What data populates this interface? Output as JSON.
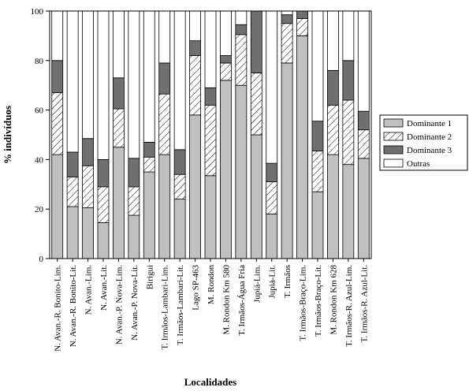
{
  "chart_data": {
    "type": "stacked_bar",
    "y_label": "% indivíduos",
    "x_label": "Localidades",
    "categories": [
      "N. Avan.-R. Bonito-Lim.",
      "N. Avan.-R. Bonito-Lit.",
      "N. Avan.-Lim.",
      "N. Avan.-Lit.",
      "N. Avan.-P. Nova-Lim.",
      "N. Avan.-P. Nova-Lit.",
      "Birigui",
      "T. Irmãos-Lambari-Lim.",
      "T. Irmãos-Lambari-Lit.",
      "Lago SP-463",
      "M. Rondon",
      "M. Rondon Km 580",
      "T. Irmãos-Água Fria",
      "Jupiá-Lim.",
      "Jupiá-Lit.",
      "T. Irmãos",
      "T. Irmãos-Braço-Lim.",
      "T. Irmãos-Braço-Lit.",
      "M. Rondon Km 628",
      "T. Irmãos-R. Azul-Lim.",
      "T. Irmãos-R. Azul-Lit."
    ],
    "series": [
      {
        "name": "Dominante 1",
        "color": "#c0c0c0",
        "values": [
          42,
          21,
          20.5,
          14.5,
          45,
          17.5,
          35,
          42,
          24,
          58,
          33.5,
          72,
          70,
          50,
          18,
          79,
          90,
          27,
          42,
          38,
          40.5
        ]
      },
      {
        "name": "Dominante 2",
        "color": "#ffffff",
        "pattern": "hatch",
        "values": [
          25,
          12,
          17,
          14.5,
          15.5,
          11.5,
          6,
          24.5,
          10,
          24,
          28.5,
          7,
          20.5,
          25,
          13,
          16,
          7,
          16.5,
          20,
          26,
          11.5
        ]
      },
      {
        "name": "Dominante 3",
        "color": "#707070",
        "values": [
          13,
          10,
          11,
          11,
          12.5,
          11.5,
          6,
          12.5,
          10,
          6,
          7,
          3,
          4,
          25,
          7.5,
          3.5,
          3,
          12,
          14,
          16,
          7.5
        ]
      },
      {
        "name": "Outras",
        "color": "#ffffff",
        "values": [
          20,
          57,
          51.5,
          60,
          27,
          59.5,
          53,
          21,
          56,
          12,
          31,
          18,
          5.5,
          0,
          61.5,
          1.5,
          0,
          44.5,
          24,
          20,
          40.5
        ]
      }
    ],
    "ylim": [
      0,
      100
    ],
    "yticks": [
      0,
      20,
      40,
      60,
      80,
      100
    ],
    "legend": "right"
  }
}
